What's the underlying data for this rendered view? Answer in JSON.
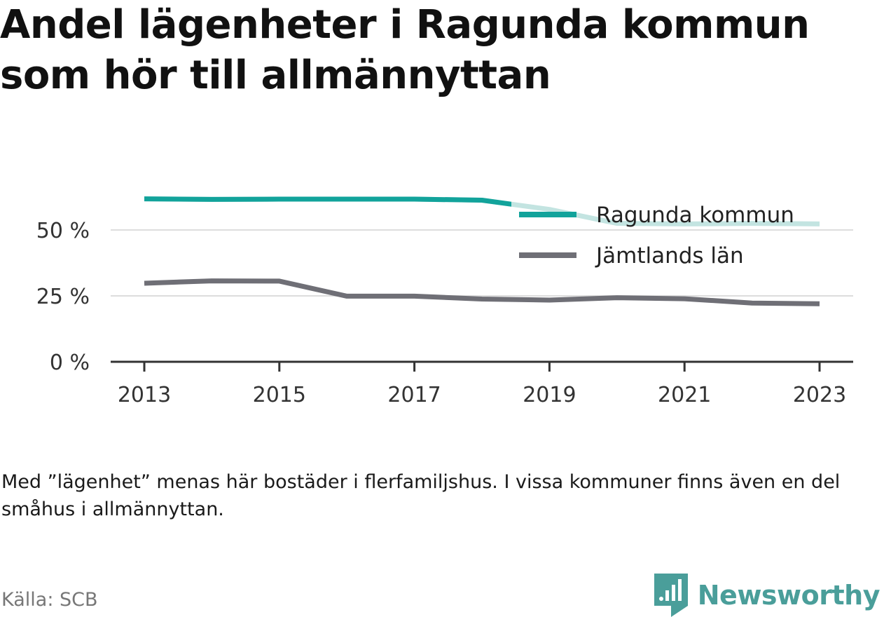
{
  "title": "Andel lägenheter i Ragunda kommun som hör till allmännyttan",
  "note": "Med ”lägenhet” menas här bostäder i flerfamiljshus. I vissa kommuner finns även en del småhus i allmännyttan.",
  "source": "Källa: SCB",
  "brand": "Newsworthy",
  "colors": {
    "ragunda": "#12a39b",
    "ragunda_light": "#c3e4e1",
    "jamtland": "#6f6f76",
    "grid": "#dddddd",
    "axis": "#333333",
    "brand": "#4a9e9a"
  },
  "chart_data": {
    "type": "line",
    "title": "Andel lägenheter i Ragunda kommun som hör till allmännyttan",
    "xlabel": "",
    "ylabel": "",
    "x": [
      2013,
      2014,
      2015,
      2016,
      2017,
      2018,
      2019,
      2020,
      2021,
      2022,
      2023
    ],
    "xticks": [
      "2013",
      "2015",
      "2017",
      "2019",
      "2021",
      "2023"
    ],
    "yticks": [
      0,
      25,
      50
    ],
    "ytick_labels": [
      "0 %",
      "25 %",
      "50 %"
    ],
    "ylim": [
      0,
      62
    ],
    "grid": true,
    "legend": "top-right",
    "series": [
      {
        "name": "Ragunda kommun",
        "values": [
          61.8,
          61.6,
          61.7,
          61.7,
          61.7,
          61.3,
          57.8,
          52.5,
          52.3,
          52.5,
          52.3
        ]
      },
      {
        "name": "Jämtlands län",
        "values": [
          29.8,
          30.7,
          30.6,
          24.9,
          24.9,
          23.8,
          23.4,
          24.3,
          23.9,
          22.3,
          22.0
        ]
      }
    ]
  }
}
